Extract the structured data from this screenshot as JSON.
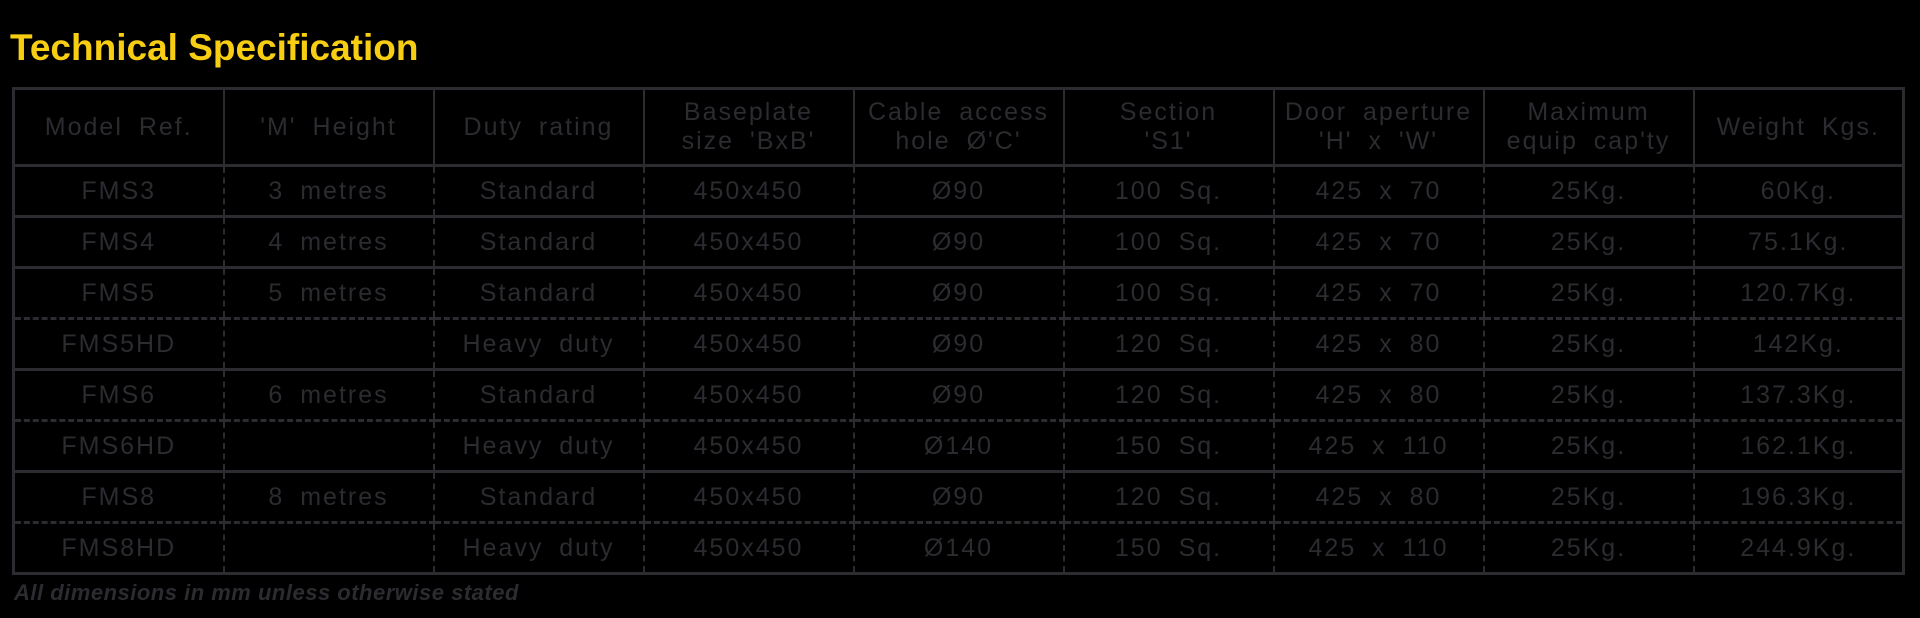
{
  "page": {
    "title": "Technical Specification",
    "footnote": "All dimensions in mm unless otherwise stated"
  },
  "colors": {
    "background": "#000000",
    "table_ink": "#2b2b30",
    "title_yellow": "#f7ce12"
  },
  "table": {
    "headers": [
      "Model Ref.",
      "'M' Height",
      "Duty rating",
      "Baseplate\nsize 'BxB'",
      "Cable access\nhole Ø'C'",
      "Section\n'S1'",
      "Door aperture\n'H' x 'W'",
      "Maximum\nequip cap'ty",
      "Weight Kgs."
    ],
    "rows": [
      [
        "FMS3",
        "3 metres",
        "Standard",
        "450x450",
        "Ø90",
        "100 Sq.",
        "425 x 70",
        "25Kg.",
        "60Kg."
      ],
      [
        "FMS4",
        "4 metres",
        "Standard",
        "450x450",
        "Ø90",
        "100 Sq.",
        "425 x 70",
        "25Kg.",
        "75.1Kg."
      ],
      [
        "FMS5",
        "5 metres",
        "Standard",
        "450x450",
        "Ø90",
        "100 Sq.",
        "425 x 70",
        "25Kg.",
        "120.7Kg."
      ],
      [
        "FMS5HD",
        "",
        "Heavy duty",
        "450x450",
        "Ø90",
        "120 Sq.",
        "425 x 80",
        "25Kg.",
        "142Kg."
      ],
      [
        "FMS6",
        "6 metres",
        "Standard",
        "450x450",
        "Ø90",
        "120 Sq.",
        "425 x 80",
        "25Kg.",
        "137.3Kg."
      ],
      [
        "FMS6HD",
        "",
        "Heavy duty",
        "450x450",
        "Ø140",
        "150 Sq.",
        "425 x 110",
        "25Kg.",
        "162.1Kg."
      ],
      [
        "FMS8",
        "8 metres",
        "Standard",
        "450x450",
        "Ø90",
        "120 Sq.",
        "425 x 80",
        "25Kg.",
        "196.3Kg."
      ],
      [
        "FMS8HD",
        "",
        "Heavy duty",
        "450x450",
        "Ø140",
        "150 Sq.",
        "425 x 110",
        "25Kg.",
        "244.9Kg."
      ]
    ]
  }
}
